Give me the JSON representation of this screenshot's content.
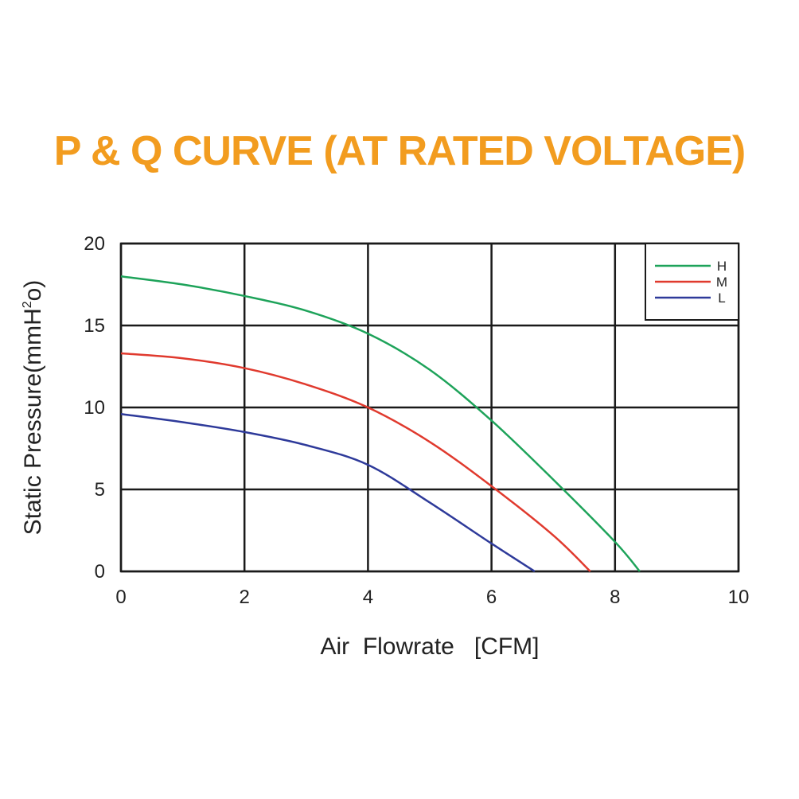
{
  "chart_data": {
    "type": "line",
    "title": "P & Q CURVE (AT RATED VOLTAGE)",
    "xlabel": "Air  Flowrate   [CFM]",
    "ylabel_main": "Static Pressure(mmH",
    "ylabel_sup": "2",
    "ylabel_end": "o)",
    "xlim": [
      0,
      10
    ],
    "ylim": [
      0,
      20
    ],
    "xticks": [
      0,
      2,
      4,
      6,
      8,
      10
    ],
    "yticks": [
      0,
      5,
      10,
      15,
      20
    ],
    "grid": true,
    "legend_position": "top-right",
    "series": [
      {
        "name": "H",
        "color": "#1ea35a",
        "points": [
          [
            0,
            18.0
          ],
          [
            1,
            17.5
          ],
          [
            2,
            16.8
          ],
          [
            3,
            15.9
          ],
          [
            4,
            14.5
          ],
          [
            5,
            12.3
          ],
          [
            6,
            9.2
          ],
          [
            7,
            5.6
          ],
          [
            8,
            1.8
          ],
          [
            8.4,
            0
          ]
        ]
      },
      {
        "name": "M",
        "color": "#e03a2e",
        "points": [
          [
            0,
            13.3
          ],
          [
            1,
            13.0
          ],
          [
            2,
            12.4
          ],
          [
            3,
            11.4
          ],
          [
            4,
            10.0
          ],
          [
            5,
            7.9
          ],
          [
            6,
            5.2
          ],
          [
            7,
            2.2
          ],
          [
            7.6,
            0
          ]
        ]
      },
      {
        "name": "L",
        "color": "#2e3a9a",
        "points": [
          [
            0,
            9.6
          ],
          [
            1,
            9.1
          ],
          [
            2,
            8.5
          ],
          [
            3,
            7.7
          ],
          [
            4,
            6.5
          ],
          [
            5,
            4.2
          ],
          [
            6,
            1.7
          ],
          [
            6.7,
            0
          ]
        ]
      }
    ]
  }
}
